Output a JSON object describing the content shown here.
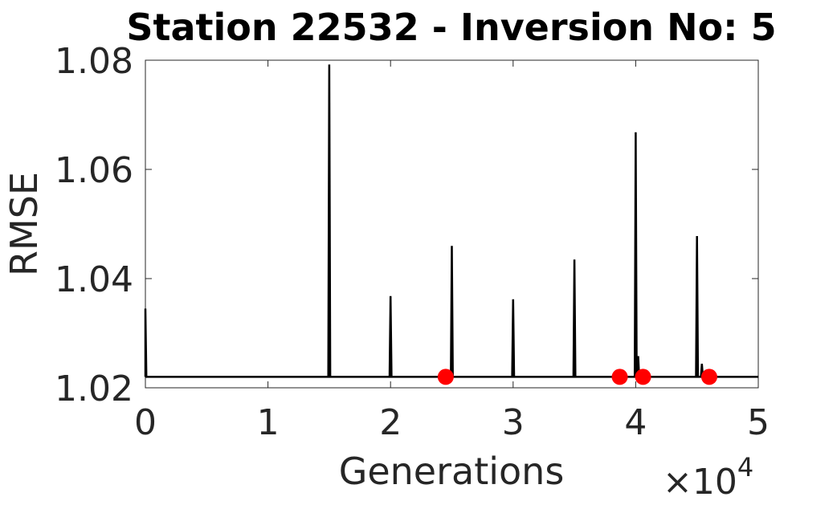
{
  "chart_data": {
    "type": "line",
    "title": "Station 22532 - Inversion No: 5",
    "xlabel": "Generations",
    "ylabel": "RMSE",
    "x_multiplier_label": "×10",
    "x_multiplier_exponent": "4",
    "xlim": [
      0,
      5
    ],
    "ylim": [
      1.02,
      1.08
    ],
    "x_ticks": [
      0,
      1,
      2,
      3,
      4,
      5
    ],
    "x_tick_labels": [
      "0",
      "1",
      "2",
      "3",
      "4",
      "5"
    ],
    "y_ticks": [
      1.02,
      1.04,
      1.06,
      1.08
    ],
    "y_tick_labels": [
      "1.02",
      "1.04",
      "1.06",
      "1.08"
    ],
    "grid": false,
    "baseline": 1.022,
    "series": [
      {
        "color": "#000000",
        "spikes": [
          {
            "x": 0.0,
            "y": 1.0345
          },
          {
            "x": 1.5,
            "y": 1.0792
          },
          {
            "x": 2.0,
            "y": 1.0368
          },
          {
            "x": 2.5,
            "y": 1.046
          },
          {
            "x": 3.0,
            "y": 1.0362
          },
          {
            "x": 3.5,
            "y": 1.0435
          },
          {
            "x": 4.0,
            "y": 1.0668
          },
          {
            "x": 4.02,
            "y": 1.0258
          },
          {
            "x": 4.5,
            "y": 1.0478
          },
          {
            "x": 4.54,
            "y": 1.0244
          }
        ]
      },
      {
        "color": "#ff0000",
        "marker": "circle",
        "points": [
          {
            "x": 2.45,
            "y": 1.022
          },
          {
            "x": 3.87,
            "y": 1.022
          },
          {
            "x": 4.06,
            "y": 1.022
          },
          {
            "x": 4.6,
            "y": 1.022
          }
        ]
      }
    ]
  }
}
